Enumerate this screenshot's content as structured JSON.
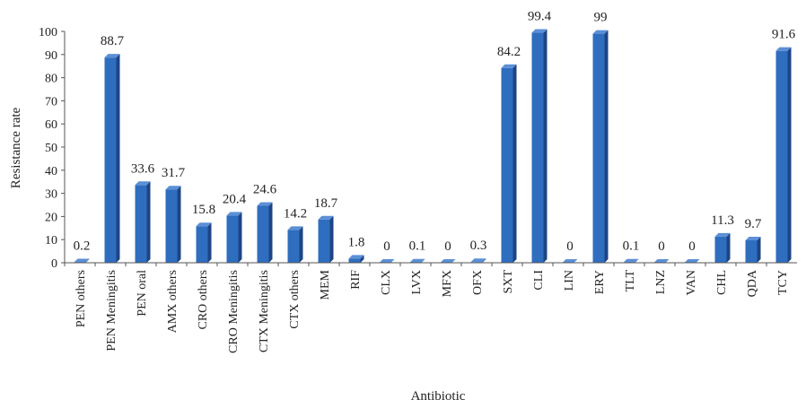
{
  "chart_data": {
    "type": "bar",
    "title": "",
    "xlabel": "Antibiotic",
    "ylabel": "Resistance rate",
    "ylim": [
      0,
      100
    ],
    "yticks": [
      0,
      10,
      20,
      30,
      40,
      50,
      60,
      70,
      80,
      90,
      100
    ],
    "grid": false,
    "legend": "none",
    "categories": [
      "PEN others",
      "PEN Meningitis",
      "PEN oral",
      "AMX others",
      "CRO others",
      "CRO Meningitis",
      "CTX Meningitis",
      "CTX others",
      "MEM",
      "RIF",
      "CLX",
      "LVX",
      "MFX",
      "OFX",
      "SXT",
      "CLI",
      "LIN",
      "ERY",
      "TLT",
      "LNZ",
      "VAN",
      "CHL",
      "QDA",
      "TCY"
    ],
    "values": [
      0.2,
      88.7,
      33.6,
      31.7,
      15.8,
      20.4,
      24.6,
      14.2,
      18.7,
      1.8,
      0,
      0.1,
      0,
      0.3,
      84.2,
      99.4,
      0,
      99,
      0.1,
      0,
      0,
      11.3,
      9.7,
      91.6
    ],
    "data_labels": [
      "0.2",
      "88.7",
      "33.6",
      "31.7",
      "15.8",
      "20.4",
      "24.6",
      "14.2",
      "18.7",
      "1.8",
      "0",
      "0.1",
      "0",
      "0.3",
      "84.2",
      "99.4",
      "0",
      "99",
      "0.1",
      "0",
      "0",
      "11.3",
      "9.7",
      "91.6"
    ],
    "colors": {
      "bar_front": "#2f6dbf",
      "bar_side": "#1c4585",
      "bar_top": "#5b8fd6",
      "axis": "#555555",
      "text": "#222222"
    }
  }
}
